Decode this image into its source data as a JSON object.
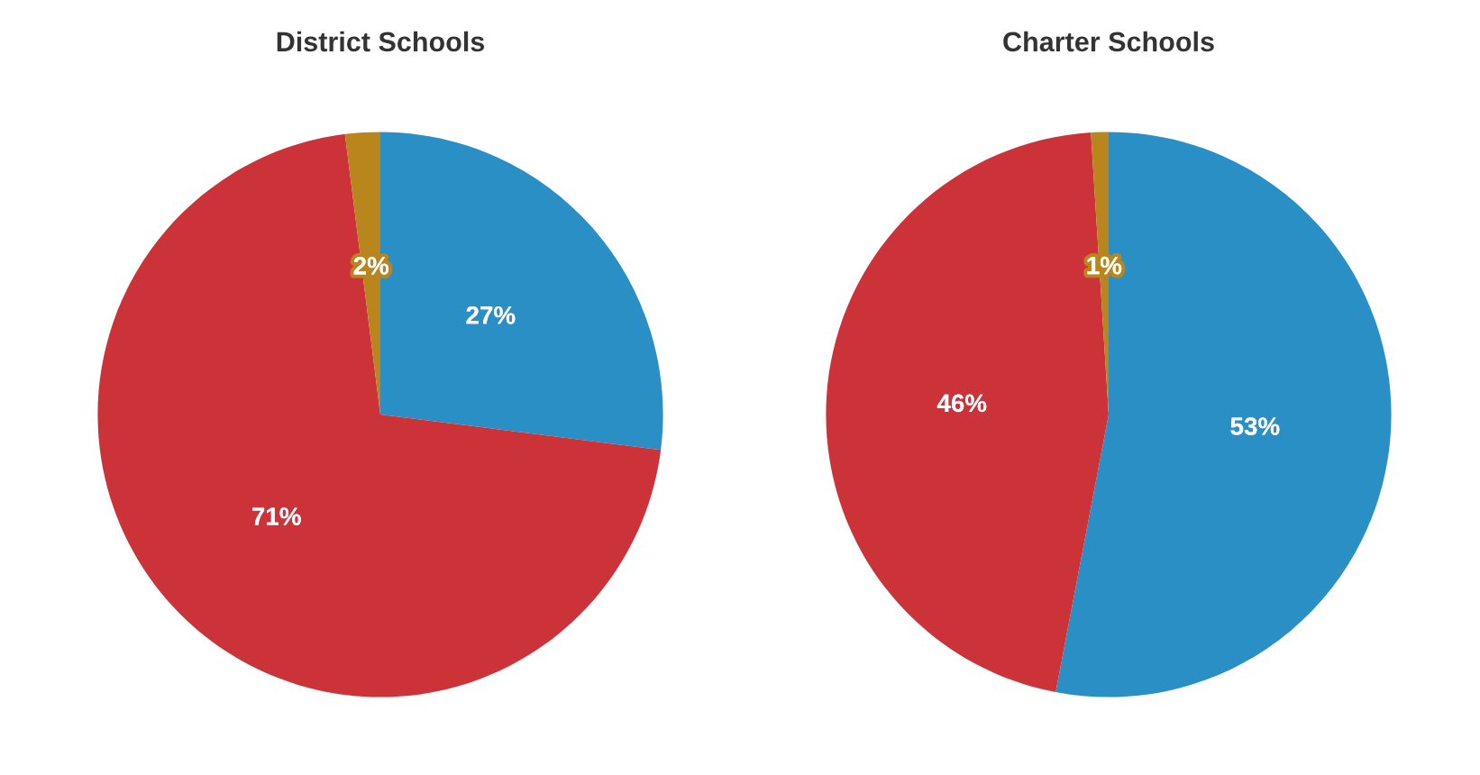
{
  "chart_data": [
    {
      "type": "pie",
      "title": "District Schools",
      "categories": [
        null,
        null,
        null
      ],
      "values": [
        27,
        71,
        2
      ],
      "colors": [
        "#2a8fc4",
        "#cc3338",
        "#b8861c"
      ],
      "value_labels": [
        "27%",
        "71%",
        "2%"
      ]
    },
    {
      "type": "pie",
      "title": "Charter Schools",
      "categories": [
        null,
        null,
        null
      ],
      "values": [
        53,
        46,
        1
      ],
      "colors": [
        "#2a8fc4",
        "#cc3338",
        "#b8861c"
      ],
      "value_labels": [
        "53%",
        "46%",
        "1%"
      ]
    }
  ]
}
